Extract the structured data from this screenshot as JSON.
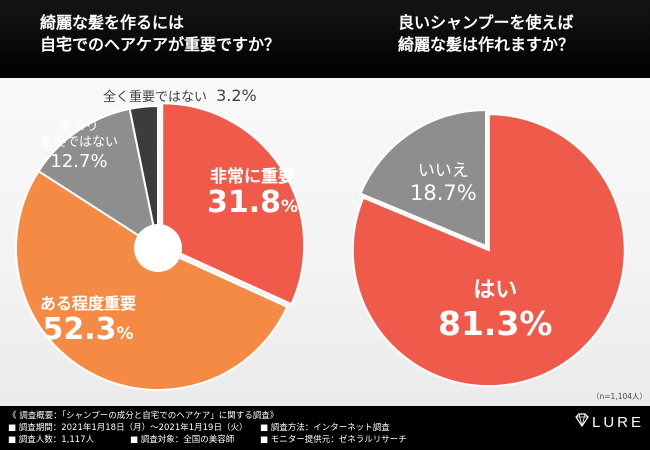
{
  "questions": {
    "left_title_lines": [
      "綺麗な髪を作るには",
      "自宅でのヘアケアが重要ですか？"
    ],
    "right_title_lines": [
      "良いシャンプーを使えば",
      "綺麗な髪は作れますか？"
    ]
  },
  "chart_data": [
    {
      "type": "pie",
      "title": "綺麗な髪を作るには 自宅でのヘアケアが重要ですか？",
      "slices": [
        {
          "label": "非常に重要",
          "value": 31.8,
          "color": "#ef5a4b"
        },
        {
          "label": "ある程度重要",
          "value": 52.3,
          "color": "#f58a44"
        },
        {
          "label": "あまり重要ではない",
          "value": 12.7,
          "color": "#8e8e8e"
        },
        {
          "label": "全く重要ではない",
          "value": 3.2,
          "color": "#3c3c3c"
        }
      ],
      "donut_hole": true
    },
    {
      "type": "pie",
      "title": "良いシャンプーを使えば 綺麗な髪は作れますか？",
      "slices": [
        {
          "label": "はい",
          "value": 81.3,
          "color": "#ef5a4b"
        },
        {
          "label": "いいえ",
          "value": 18.7,
          "color": "#8e8e8e"
        }
      ],
      "note": "（n=1,104人）"
    }
  ],
  "labels": {
    "very_important": {
      "name": "非常に重要",
      "value_int": "31.8",
      "value_dec": "%"
    },
    "somewhat_important": {
      "name": "ある程度重要",
      "value_int": "52.3",
      "value_dec": "%"
    },
    "not_very_important": {
      "name_line1": "あまり",
      "name_line2": "重要ではない",
      "value": "12.7%"
    },
    "not_important_at_all": {
      "name": "全く重要ではない",
      "value": "3.2%"
    },
    "yes": {
      "name": "はい",
      "value": "81.3%"
    },
    "no": {
      "name": "いいえ",
      "value": "18.7%"
    }
  },
  "survey": {
    "heading": "《 調査概要：「シャンプーの成分と自宅でのヘアケア」に関する調査》",
    "period": "■ 調査期間：2021年1月18日（月）～2021年1月19日（火）",
    "method": "■ 調査方法：インターネット調査",
    "count": "■ 調査人数：1,117人",
    "target": "■ 調査対象：全国の美容師",
    "provider": "■ モニター提供元：ゼネラルリサーチ"
  },
  "brand": {
    "logo_text": "LURE"
  },
  "colors": {
    "red": "#ef5a4b",
    "orange": "#f58a44",
    "gray": "#8e8e8e",
    "dark": "#3c3c3c"
  }
}
